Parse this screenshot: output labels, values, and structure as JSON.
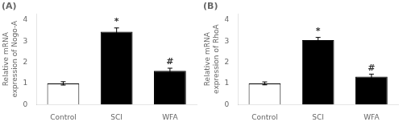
{
  "chart_data": [
    {
      "type": "bar",
      "title": "(A)",
      "ylabel": "Relative mRNA\nexpression of Nogo-A",
      "categories": [
        "Control",
        "SCI",
        "WFA"
      ],
      "values": [
        1.0,
        3.45,
        1.6
      ],
      "errors": [
        0.08,
        0.18,
        0.12
      ],
      "colors": [
        "white",
        "black",
        "black"
      ],
      "annotations": [
        {
          "category": "SCI",
          "text": "*"
        },
        {
          "category": "WFA",
          "text": "#"
        }
      ],
      "ylim": [
        0,
        4.3
      ],
      "yticks": [
        0,
        1,
        2,
        3,
        4
      ],
      "grid": false
    },
    {
      "type": "bar",
      "title": "(B)",
      "ylabel": "Relative mRNA\nexpression of RhoA",
      "categories": [
        "Control",
        "SCI",
        "WFA"
      ],
      "values": [
        1.0,
        3.05,
        1.32
      ],
      "errors": [
        0.07,
        0.13,
        0.12
      ],
      "colors": [
        "white",
        "black",
        "black"
      ],
      "annotations": [
        {
          "category": "SCI",
          "text": "*"
        },
        {
          "category": "WFA",
          "text": "#"
        }
      ],
      "ylim": [
        0,
        4.3
      ],
      "yticks": [
        0,
        1,
        2,
        3,
        4
      ],
      "grid": false
    }
  ]
}
